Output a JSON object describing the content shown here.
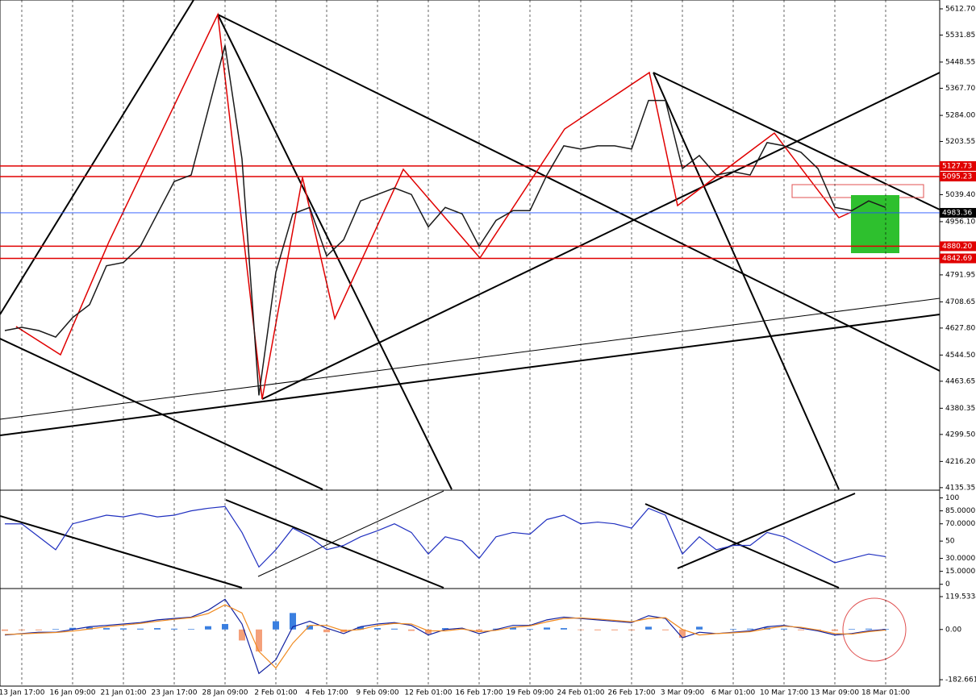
{
  "chart_data": [
    {
      "type": "line",
      "categories": [
        null,
        "13 Jan 17:00",
        null,
        null,
        "16 Jan 09:00",
        null,
        null,
        "21 Jan 01:00",
        null,
        null,
        "23 Jan 17:00",
        null,
        null,
        "28 Jan 09:00",
        null,
        null,
        "2 Feb 01:00",
        null,
        null,
        "4 Feb 17:00",
        null,
        null,
        "9 Feb 09:00",
        null,
        null,
        "12 Feb 01:00",
        null,
        null,
        "16 Feb 17:00",
        null,
        null,
        "19 Feb 09:00",
        null,
        null,
        "24 Feb 01:00",
        null,
        null,
        "26 Feb 17:00",
        null,
        null,
        "3 Mar 09:00",
        null,
        null,
        "6 Mar 01:00",
        null,
        null,
        "10 Mar 17:00",
        null,
        null,
        "13 Mar 09:00",
        null,
        null,
        "18 Mar 01:00"
      ],
      "series": [
        {
          "color": "#1a1a1a",
          "values": [
            4620,
            4630,
            4620,
            4600,
            4660,
            4700,
            4820,
            4830,
            4880,
            4980,
            5080,
            5100,
            5300,
            5500,
            5150,
            4420,
            4800,
            4980,
            5000,
            4850,
            4900,
            5020,
            5040,
            5060,
            5040,
            4940,
            5000,
            4980,
            4880,
            4960,
            4990,
            4990,
            5100,
            5190,
            5180,
            5190,
            5190,
            5180,
            5330,
            5330,
            5120,
            5160,
            5100,
            5110,
            5100,
            5200,
            5190,
            5170,
            5120,
            5000,
            4990,
            5020,
            5000
          ]
        }
      ],
      "ylim": [
        4130,
        5640
      ],
      "yticks": [
        {
          "value": 5612.7,
          "label": "5612.70"
        },
        5531.85,
        5448.55,
        {
          "value": 5367.7,
          "label": "5367.70"
        },
        {
          "value": 5284,
          "label": "5284.00"
        },
        5203.55,
        {
          "value": 5039.4,
          "label": "5039.40"
        },
        {
          "value": 4956.1,
          "label": "4956.10"
        },
        4791.95,
        4708.65,
        {
          "value": 4627.8,
          "label": "4627.80"
        },
        {
          "value": 4544.5,
          "label": "4544.50"
        },
        4463.65,
        4380.35,
        {
          "value": 4299.5,
          "label": "4299.50"
        },
        {
          "value": 4216.2,
          "label": "4216.20"
        },
        4135.35
      ],
      "levels": [
        {
          "value": 5127.73,
          "color": "#e00000"
        },
        {
          "value": 5095.23,
          "color": "#e00000"
        },
        {
          "value": 4983.36,
          "color": "#2050ff",
          "label_color": "#000"
        },
        {
          "value": 4880.2,
          "label": "4880.20",
          "color": "#e00000"
        },
        {
          "value": 4842.69,
          "color": "#e00000"
        }
      ]
    },
    {
      "type": "line",
      "series": [
        {
          "color": "#2030c0",
          "values": [
            70,
            70,
            55,
            40,
            70,
            75,
            80,
            78,
            82,
            78,
            80,
            85,
            88,
            90,
            60,
            20,
            40,
            65,
            55,
            40,
            45,
            55,
            62,
            70,
            60,
            35,
            55,
            50,
            30,
            55,
            60,
            58,
            75,
            80,
            70,
            72,
            70,
            65,
            88,
            80,
            35,
            55,
            40,
            45,
            45,
            60,
            55,
            45,
            35,
            25,
            30,
            35,
            32
          ]
        }
      ],
      "ylim": [
        -4,
        108
      ],
      "yticks": [
        100,
        {
          "value": 85,
          "label": "85.0000"
        },
        {
          "value": 70,
          "label": "70.0000"
        },
        50,
        {
          "value": 30,
          "label": "30.0000"
        },
        {
          "value": 15,
          "label": "15.0000"
        },
        0
      ]
    },
    {
      "type": "bar",
      "series": [
        {
          "type": "bar",
          "color": "#3a7fe0",
          "negative_color": "#f4a07a",
          "values": [
            -5,
            -3,
            -3,
            2,
            6,
            8,
            5,
            4,
            3,
            5,
            3,
            2,
            12,
            20,
            -40,
            -80,
            30,
            60,
            15,
            -10,
            -10,
            10,
            5,
            3,
            -5,
            -15,
            5,
            3,
            -7,
            3,
            7,
            2,
            7,
            5,
            -2,
            -3,
            -3,
            -3,
            10,
            -3,
            -30,
            10,
            0,
            2,
            3,
            7,
            3,
            -3,
            -3,
            -5,
            2,
            3,
            2
          ]
        },
        {
          "type": "line",
          "color": "#1020a0",
          "values": [
            -20,
            -15,
            -10,
            -10,
            0,
            10,
            15,
            20,
            25,
            35,
            40,
            45,
            70,
            110,
            20,
            -160,
            -110,
            10,
            30,
            5,
            -15,
            10,
            20,
            25,
            15,
            -20,
            0,
            5,
            -15,
            0,
            15,
            15,
            35,
            45,
            40,
            35,
            30,
            25,
            50,
            40,
            -30,
            -10,
            -15,
            -10,
            -5,
            10,
            15,
            5,
            -5,
            -20,
            -15,
            -5,
            0
          ]
        },
        {
          "type": "line",
          "color": "#f08a20",
          "values": [
            -18,
            -16,
            -13,
            -11,
            -6,
            2,
            10,
            16,
            22,
            30,
            37,
            43,
            58,
            90,
            60,
            -80,
            -140,
            -50,
            15,
            15,
            -5,
            0,
            15,
            22,
            20,
            -5,
            -5,
            2,
            -8,
            -3,
            8,
            13,
            28,
            40,
            42,
            38,
            33,
            28,
            40,
            43,
            0,
            -20,
            -15,
            -12,
            -8,
            3,
            12,
            8,
            -2,
            -15,
            -17,
            -8,
            -2
          ]
        }
      ],
      "ylim": [
        -203,
        146
      ],
      "yticks": [
        119.5334,
        {
          "value": 0,
          "label": "0.00"
        },
        -182.6615
      ]
    }
  ]
}
